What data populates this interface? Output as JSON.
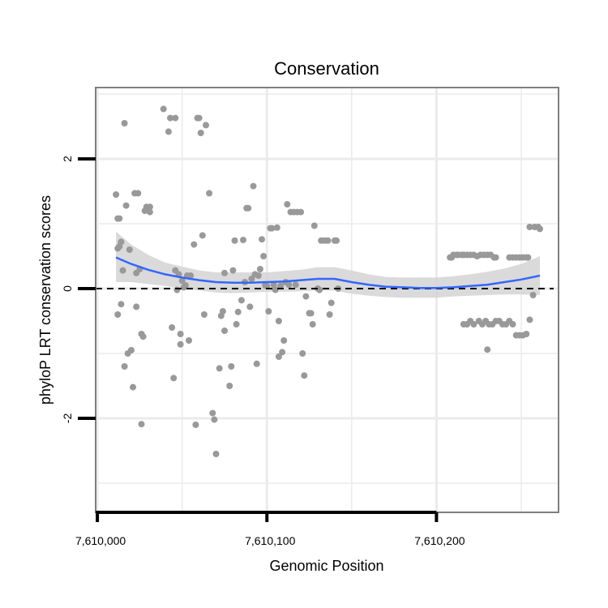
{
  "chart_data": {
    "type": "scatter",
    "title": "Conservation",
    "xlabel": "Genomic Position",
    "ylabel": "phyloP LRT conservation scores",
    "xlim": [
      7609999,
      7610272
    ],
    "ylim": [
      -3.45,
      3.1
    ],
    "xticks": [
      {
        "value": 7610000,
        "label": "7,610,000"
      },
      {
        "value": 7610100,
        "label": "7,610,100"
      },
      {
        "value": 7610200,
        "label": "7,610,200"
      }
    ],
    "yticks": [
      {
        "value": 2,
        "label": "2"
      },
      {
        "value": 0,
        "label": "0"
      },
      {
        "value": -2,
        "label": "-2"
      }
    ],
    "grid": true,
    "reference_line": {
      "y": 0,
      "style": "dashed",
      "color": "#000000"
    },
    "colors": {
      "points": "#999999",
      "smooth": "#3366ff",
      "ribbon": "#d3d3d3",
      "grid": "#ebebeb",
      "frame": "#7f7f7f"
    },
    "points": [
      [
        7610011,
        1.45
      ],
      [
        7610012,
        1.08
      ],
      [
        7610013,
        1.08
      ],
      [
        7610012,
        0.62
      ],
      [
        7610013,
        0.65
      ],
      [
        7610014,
        0.72
      ],
      [
        7610015,
        0.28
      ],
      [
        7610012,
        -0.4
      ],
      [
        7610014,
        -0.24
      ],
      [
        7610016,
        -1.2
      ],
      [
        7610016,
        2.55
      ],
      [
        7610017,
        1.28
      ],
      [
        7610018,
        -1.0
      ],
      [
        7610019,
        0.6
      ],
      [
        7610020,
        -0.95
      ],
      [
        7610021,
        -1.52
      ],
      [
        7610022,
        1.47
      ],
      [
        7610024,
        1.47
      ],
      [
        7610023,
        0.24
      ],
      [
        7610023,
        -0.28
      ],
      [
        7610025,
        0.3
      ],
      [
        7610026,
        -2.09
      ],
      [
        7610026,
        -0.7
      ],
      [
        7610027,
        -0.74
      ],
      [
        7610028,
        1.2
      ],
      [
        7610029,
        1.26
      ],
      [
        7610031,
        1.26
      ],
      [
        7610031,
        1.18
      ],
      [
        7610039,
        2.77
      ],
      [
        7610042,
        2.42
      ],
      [
        7610043,
        2.63
      ],
      [
        7610046,
        2.63
      ],
      [
        7610044,
        -0.6
      ],
      [
        7610045,
        -1.38
      ],
      [
        7610046,
        0.28
      ],
      [
        7610047,
        -0.02
      ],
      [
        7610048,
        0.22
      ],
      [
        7610049,
        -0.86
      ],
      [
        7610049,
        -0.7
      ],
      [
        7610050,
        0.12
      ],
      [
        7610051,
        0.02
      ],
      [
        7610052,
        0.05
      ],
      [
        7610053,
        0.2
      ],
      [
        7610054,
        -0.8
      ],
      [
        7610055,
        0.2
      ],
      [
        7610057,
        0.68
      ],
      [
        7610058,
        -2.1
      ],
      [
        7610059,
        2.63
      ],
      [
        7610060,
        2.63
      ],
      [
        7610061,
        2.4
      ],
      [
        7610062,
        0.82
      ],
      [
        7610063,
        -0.4
      ],
      [
        7610064,
        2.52
      ],
      [
        7610066,
        1.47
      ],
      [
        7610068,
        -1.92
      ],
      [
        7610069,
        -2.02
      ],
      [
        7610070,
        -2.55
      ],
      [
        7610072,
        -1.23
      ],
      [
        7610073,
        -0.42
      ],
      [
        7610074,
        -0.35
      ],
      [
        7610075,
        0.24
      ],
      [
        7610075,
        -0.65
      ],
      [
        7610078,
        -1.5
      ],
      [
        7610079,
        -1.2
      ],
      [
        7610080,
        0.28
      ],
      [
        7610081,
        0.74
      ],
      [
        7610082,
        -0.55
      ],
      [
        7610083,
        -0.36
      ],
      [
        7610085,
        -0.18
      ],
      [
        7610086,
        0.75
      ],
      [
        7610087,
        0.1
      ],
      [
        7610088,
        1.24
      ],
      [
        7610089,
        1.24
      ],
      [
        7610090,
        -0.28
      ],
      [
        7610091,
        0.15
      ],
      [
        7610092,
        1.58
      ],
      [
        7610093,
        0.22
      ],
      [
        7610094,
        -1.16
      ],
      [
        7610095,
        0.2
      ],
      [
        7610096,
        0.3
      ],
      [
        7610097,
        0.76
      ],
      [
        7610098,
        0.5
      ],
      [
        7610099,
        0.05
      ],
      [
        7610100,
        0.04
      ],
      [
        7610101,
        -0.35
      ],
      [
        7610102,
        0.93
      ],
      [
        7610103,
        0.93
      ],
      [
        7610104,
        0.06
      ],
      [
        7610105,
        -0.02
      ],
      [
        7610106,
        0.94
      ],
      [
        7610107,
        -1.05
      ],
      [
        7610107,
        -0.5
      ],
      [
        7610108,
        0.04
      ],
      [
        7610109,
        -0.98
      ],
      [
        7610110,
        -0.8
      ],
      [
        7610111,
        0.1
      ],
      [
        7610112,
        1.3
      ],
      [
        7610113,
        0.06
      ],
      [
        7610114,
        1.18
      ],
      [
        7610116,
        1.18
      ],
      [
        7610117,
        0.06
      ],
      [
        7610118,
        1.18
      ],
      [
        7610120,
        1.18
      ],
      [
        7610121,
        -1.0
      ],
      [
        7610122,
        -1.34
      ],
      [
        7610123,
        -0.12
      ],
      [
        7610125,
        -0.38
      ],
      [
        7610126,
        -0.38
      ],
      [
        7610127,
        -0.55
      ],
      [
        7610128,
        0.97
      ],
      [
        7610130,
        0.0
      ],
      [
        7610131,
        -0.02
      ],
      [
        7610132,
        0.74
      ],
      [
        7610134,
        0.74
      ],
      [
        7610136,
        0.74
      ],
      [
        7610137,
        -0.4
      ],
      [
        7610138,
        -0.22
      ],
      [
        7610140,
        0.74
      ],
      [
        7610141,
        0.74
      ],
      [
        7610142,
        0.0
      ],
      [
        7610208,
        0.48
      ],
      [
        7610209,
        0.48
      ],
      [
        7610210,
        0.52
      ],
      [
        7610212,
        0.52
      ],
      [
        7610213,
        0.52
      ],
      [
        7610215,
        0.52
      ],
      [
        7610216,
        0.52
      ],
      [
        7610218,
        0.52
      ],
      [
        7610220,
        0.52
      ],
      [
        7610222,
        0.52
      ],
      [
        7610224,
        0.5
      ],
      [
        7610226,
        0.52
      ],
      [
        7610228,
        0.52
      ],
      [
        7610230,
        0.52
      ],
      [
        7610232,
        0.52
      ],
      [
        7610234,
        0.48
      ],
      [
        7610235,
        0.48
      ],
      [
        7610243,
        0.48
      ],
      [
        7610245,
        0.48
      ],
      [
        7610247,
        0.48
      ],
      [
        7610249,
        0.48
      ],
      [
        7610251,
        0.48
      ],
      [
        7610253,
        0.48
      ],
      [
        7610254,
        0.48
      ],
      [
        7610216,
        -0.55
      ],
      [
        7610218,
        -0.55
      ],
      [
        7610220,
        -0.5
      ],
      [
        7610222,
        -0.55
      ],
      [
        7610225,
        -0.5
      ],
      [
        7610227,
        -0.55
      ],
      [
        7610229,
        -0.5
      ],
      [
        7610230,
        -0.94
      ],
      [
        7610231,
        -0.55
      ],
      [
        7610233,
        -0.55
      ],
      [
        7610235,
        -0.5
      ],
      [
        7610237,
        -0.5
      ],
      [
        7610239,
        -0.55
      ],
      [
        7610241,
        -0.55
      ],
      [
        7610243,
        -0.5
      ],
      [
        7610245,
        -0.55
      ],
      [
        7610247,
        -0.72
      ],
      [
        7610249,
        -0.72
      ],
      [
        7610251,
        -0.72
      ],
      [
        7610253,
        -0.7
      ],
      [
        7610255,
        -0.48
      ],
      [
        7610257,
        -0.1
      ],
      [
        7610255,
        0.95
      ],
      [
        7610258,
        0.95
      ],
      [
        7610260,
        0.95
      ],
      [
        7610261,
        0.92
      ]
    ],
    "smooth": {
      "method": "loess",
      "x": [
        7610011,
        7610020,
        7610030,
        7610040,
        7610050,
        7610060,
        7610070,
        7610080,
        7610090,
        7610100,
        7610110,
        7610120,
        7610130,
        7610140,
        7610150,
        7610160,
        7610170,
        7610180,
        7610190,
        7610200,
        7610210,
        7610220,
        7610230,
        7610240,
        7610250,
        7610261
      ],
      "y": [
        0.48,
        0.38,
        0.29,
        0.22,
        0.17,
        0.13,
        0.1,
        0.09,
        0.09,
        0.1,
        0.11,
        0.13,
        0.15,
        0.15,
        0.1,
        0.06,
        0.03,
        0.02,
        0.01,
        0.01,
        0.02,
        0.04,
        0.06,
        0.1,
        0.14,
        0.2
      ],
      "lower": [
        0.1,
        0.1,
        0.07,
        0.04,
        0.0,
        -0.03,
        -0.06,
        -0.07,
        -0.06,
        -0.05,
        -0.05,
        -0.04,
        -0.03,
        -0.03,
        -0.08,
        -0.11,
        -0.13,
        -0.14,
        -0.14,
        -0.14,
        -0.12,
        -0.11,
        -0.1,
        -0.09,
        -0.09,
        -0.1
      ],
      "upper": [
        0.88,
        0.68,
        0.52,
        0.4,
        0.34,
        0.28,
        0.25,
        0.25,
        0.25,
        0.25,
        0.27,
        0.29,
        0.33,
        0.33,
        0.28,
        0.22,
        0.18,
        0.17,
        0.17,
        0.17,
        0.19,
        0.22,
        0.26,
        0.31,
        0.38,
        0.5
      ]
    }
  }
}
